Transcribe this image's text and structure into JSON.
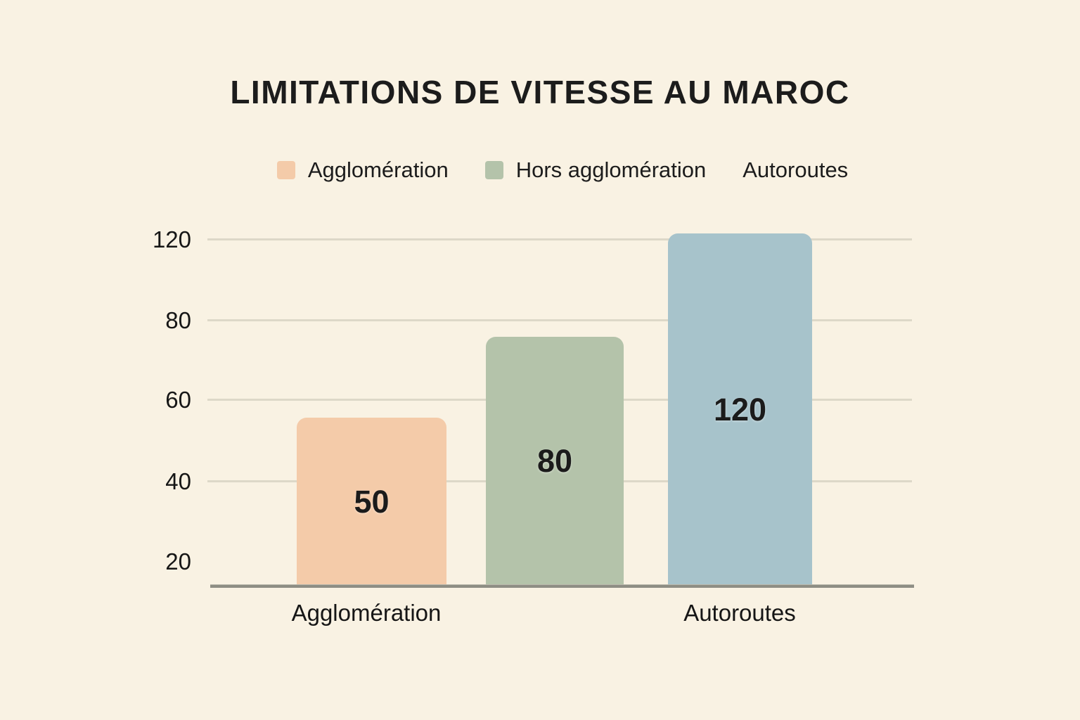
{
  "title": "LIMITATIONS DE VITESSE AU MAROC",
  "colors": {
    "background": "#f9f2e3",
    "agglomeration_bar": "#f4cba9",
    "hors_agglomeration_bar": "#b4c3aa",
    "autoroutes_bar": "#a7c3cb",
    "gridline": "#ddd8c8",
    "axis_line": "#8e8e84",
    "text": "#1c1c1c"
  },
  "legend": {
    "items": [
      {
        "label": "Agglomération",
        "color": "#f4cba9",
        "has_swatch": true
      },
      {
        "label": "Hors agglomération",
        "color": "#b4c3aa",
        "has_swatch": true
      },
      {
        "label": "Autoroutes",
        "color": "",
        "has_swatch": false
      }
    ]
  },
  "yaxis": {
    "ticks": [
      "120",
      "80",
      "60",
      "40",
      "20"
    ]
  },
  "xaxis": {
    "labels": [
      "Agglomération",
      "Autoroutes"
    ]
  },
  "chart_data": {
    "type": "bar",
    "title": "LIMITATIONS DE VITESSE AU MAROC",
    "categories": [
      "Agglomération",
      "Hors agglomération",
      "Autoroutes"
    ],
    "values": [
      50,
      80,
      120
    ],
    "bar_labels": [
      "50",
      "80",
      "120"
    ],
    "bar_colors": [
      "#f4cba9",
      "#b4c3aa",
      "#a7c3cb"
    ],
    "xlabel": "",
    "ylabel": "",
    "y_ticks": [
      120,
      80,
      60,
      40,
      20
    ],
    "ylim": [
      0,
      130
    ],
    "grid": true,
    "legend_position": "top",
    "legend_entries": [
      "Agglomération",
      "Hors agglomération",
      "Autoroutes"
    ],
    "x_axis_labels_shown": [
      "Agglomération",
      "Autoroutes"
    ]
  }
}
